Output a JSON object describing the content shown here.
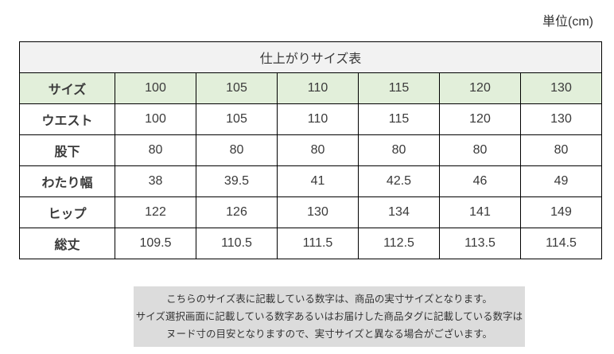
{
  "unit_label": "単位(cm)",
  "table": {
    "title": "仕上がりサイズ表",
    "rows": [
      {
        "label": "サイズ",
        "values": [
          "100",
          "105",
          "110",
          "115",
          "120",
          "130"
        ]
      },
      {
        "label": "ウエスト",
        "values": [
          "100",
          "105",
          "110",
          "115",
          "120",
          "130"
        ]
      },
      {
        "label": "股下",
        "values": [
          "80",
          "80",
          "80",
          "80",
          "80",
          "80"
        ]
      },
      {
        "label": "わたり幅",
        "values": [
          "38",
          "39.5",
          "41",
          "42.5",
          "46",
          "49"
        ]
      },
      {
        "label": "ヒップ",
        "values": [
          "122",
          "126",
          "130",
          "134",
          "141",
          "149"
        ]
      },
      {
        "label": "総丈",
        "values": [
          "109.5",
          "110.5",
          "111.5",
          "112.5",
          "113.5",
          "114.5"
        ]
      }
    ]
  },
  "note": {
    "lines": [
      "こちらのサイズ表に記載している数字は、商品の実寸サイズとなります。",
      "サイズ選択画面に記載している数字あるいはお届けした商品タグに記載している数字は",
      "ヌード寸の目安となりますので、実寸サイズと異なる場合がございます。"
    ]
  },
  "colors": {
    "header_bg": "#f2f2f2",
    "size_row_bg": "#e2efda",
    "note_bg": "#dcdcdc",
    "border": "#000000",
    "text": "#3a3a3a"
  }
}
